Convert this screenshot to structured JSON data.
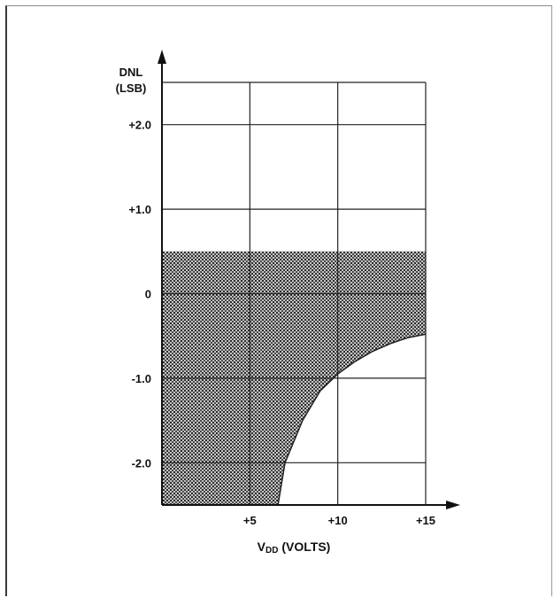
{
  "chart_data": {
    "type": "area",
    "ylabel_line1": "DNL",
    "ylabel_line2": "(LSB)",
    "xlabel_main": "V",
    "xlabel_sub": "DD",
    "xlabel_rest": " (VOLTS)",
    "xlim": [
      0,
      15
    ],
    "ylim": [
      -2.5,
      2.5
    ],
    "grid": true,
    "x_ticks": [
      {
        "value": 5,
        "label": "+5"
      },
      {
        "value": 10,
        "label": "+10"
      },
      {
        "value": 15,
        "label": "+15"
      }
    ],
    "y_ticks": [
      {
        "value": 2.0,
        "label": "+2.0"
      },
      {
        "value": 1.0,
        "label": "+1.0"
      },
      {
        "value": 0,
        "label": "0"
      },
      {
        "value": -1.0,
        "label": "-1.0"
      },
      {
        "value": -2.0,
        "label": "-2.0"
      }
    ],
    "region": {
      "fill": "stippled",
      "upper_bound": 0.5,
      "lower_bound_points": [
        {
          "x": 0,
          "y": -2.5
        },
        {
          "x": 6.6,
          "y": -2.5
        },
        {
          "x": 7.0,
          "y": -2.0
        },
        {
          "x": 8.0,
          "y": -1.5
        },
        {
          "x": 9.0,
          "y": -1.15
        },
        {
          "x": 10.0,
          "y": -0.95
        },
        {
          "x": 11.0,
          "y": -0.8
        },
        {
          "x": 12.0,
          "y": -0.68
        },
        {
          "x": 13.0,
          "y": -0.59
        },
        {
          "x": 14.0,
          "y": -0.52
        },
        {
          "x": 15.0,
          "y": -0.48
        }
      ]
    }
  }
}
